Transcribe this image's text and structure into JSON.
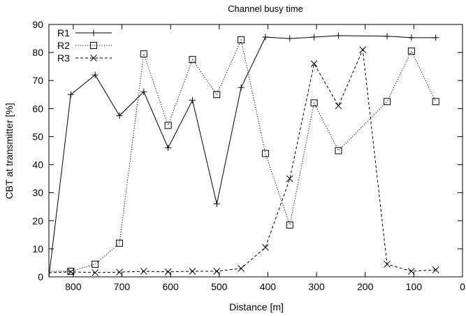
{
  "chart_data": {
    "type": "line",
    "title": "Channel busy time",
    "xlabel": "Distance [m]",
    "ylabel": "CBT at transmitter [%]",
    "xlim": [
      850,
      0
    ],
    "ylim": [
      0,
      90
    ],
    "xticks": [
      800,
      700,
      600,
      500,
      400,
      300,
      200,
      100,
      0
    ],
    "yticks": [
      0,
      10,
      20,
      30,
      40,
      50,
      60,
      70,
      80,
      90
    ],
    "grid": false,
    "legend_position": "top-left",
    "series": [
      {
        "name": "R1",
        "marker": "plus",
        "dash": "solid",
        "x": [
          850,
          805,
          755,
          705,
          655,
          605,
          555,
          505,
          455,
          405,
          355,
          305,
          255,
          155,
          105,
          55
        ],
        "y": [
          0,
          65,
          72,
          57.5,
          66,
          46,
          63,
          26,
          67.5,
          85.5,
          85,
          85.5,
          86,
          85.8,
          85.3,
          85.3
        ]
      },
      {
        "name": "R2",
        "marker": "square",
        "dash": "dotted",
        "x": [
          850,
          805,
          755,
          705,
          655,
          605,
          555,
          505,
          455,
          405,
          355,
          305,
          255,
          155,
          105,
          55
        ],
        "y": [
          2,
          2,
          4.5,
          12,
          79.5,
          54,
          77.5,
          65,
          84.5,
          44,
          18.5,
          62,
          45,
          62.5,
          80.5,
          62.5
        ]
      },
      {
        "name": "R3",
        "marker": "cross",
        "dash": "dashed",
        "x": [
          850,
          805,
          755,
          705,
          655,
          605,
          555,
          505,
          455,
          405,
          355,
          305,
          255,
          205,
          155,
          105,
          55
        ],
        "y": [
          1.5,
          1.8,
          1.5,
          1.7,
          2,
          1.8,
          2,
          2,
          3,
          10.5,
          35,
          76,
          61,
          81,
          4.5,
          2,
          2.5
        ]
      }
    ]
  }
}
